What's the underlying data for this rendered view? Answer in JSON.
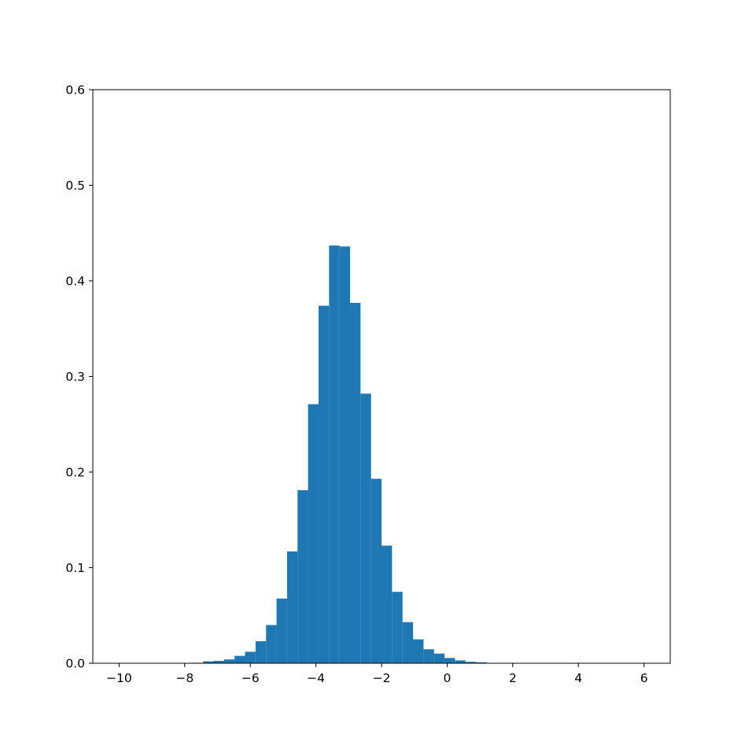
{
  "chart_data": {
    "type": "bar",
    "subtype": "histogram",
    "title": "",
    "xlabel": "",
    "ylabel": "",
    "xlim": [
      -10.8,
      6.8
    ],
    "ylim": [
      0,
      0.6
    ],
    "grid": false,
    "bar_color": "#1f77b4",
    "bin_start": -10.0,
    "bin_width": 0.32,
    "values": [
      0,
      0,
      0,
      0,
      0,
      0,
      0.0002,
      0.0005,
      0.002,
      0.0025,
      0.004,
      0.0077,
      0.012,
      0.023,
      0.04,
      0.0677,
      0.117,
      0.181,
      0.271,
      0.374,
      0.437,
      0.436,
      0.377,
      0.282,
      0.193,
      0.123,
      0.0747,
      0.043,
      0.025,
      0.0146,
      0.0101,
      0.0055,
      0.003,
      0.0015,
      0.001,
      0.0003,
      0.0001,
      0,
      0,
      0,
      0,
      0,
      0,
      0,
      0,
      0,
      0,
      0,
      0,
      0
    ],
    "xticks": [
      -10,
      -8,
      -6,
      -4,
      -2,
      0,
      2,
      4,
      6
    ],
    "xtick_labels": [
      "−10",
      "−8",
      "−6",
      "−4",
      "−2",
      "0",
      "2",
      "4",
      "6"
    ],
    "yticks": [
      0,
      0.1,
      0.2,
      0.3,
      0.4,
      0.5,
      0.6
    ],
    "ytick_labels": [
      "0.0",
      "0.1",
      "0.2",
      "0.3",
      "0.4",
      "0.5",
      "0.6"
    ]
  }
}
